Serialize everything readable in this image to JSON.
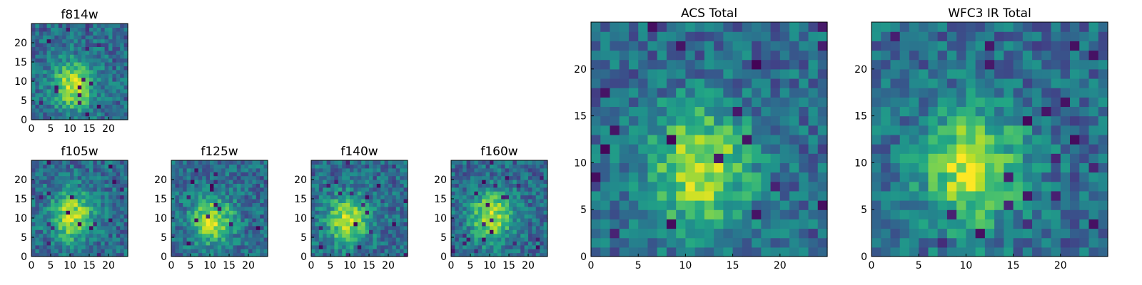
{
  "chart_data": [
    {
      "type": "heatmap",
      "title": "f814w",
      "colormap": "viridis",
      "xticks": [
        0,
        5,
        10,
        15,
        20
      ],
      "yticks": [
        0,
        5,
        10,
        15,
        20
      ],
      "xlim": [
        0,
        25
      ],
      "ylim": [
        0,
        25
      ],
      "grid_size": [
        25,
        25
      ],
      "values_seed": 11,
      "peak_center": [
        10.5,
        8.5
      ]
    },
    {
      "type": "heatmap",
      "title": "f105w",
      "colormap": "viridis",
      "xticks": [
        0,
        5,
        10,
        15,
        20
      ],
      "yticks": [
        0,
        5,
        10,
        15,
        20
      ],
      "xlim": [
        0,
        25
      ],
      "ylim": [
        0,
        25
      ],
      "grid_size": [
        25,
        25
      ],
      "values_seed": 21,
      "peak_center": [
        10,
        10
      ]
    },
    {
      "type": "heatmap",
      "title": "f125w",
      "colormap": "viridis",
      "xticks": [
        0,
        5,
        10,
        15,
        20
      ],
      "yticks": [
        0,
        5,
        10,
        15,
        20
      ],
      "xlim": [
        0,
        25
      ],
      "ylim": [
        0,
        25
      ],
      "grid_size": [
        25,
        25
      ],
      "values_seed": 31,
      "peak_center": [
        10,
        9
      ]
    },
    {
      "type": "heatmap",
      "title": "f140w",
      "colormap": "viridis",
      "xticks": [
        0,
        5,
        10,
        15,
        20
      ],
      "yticks": [
        0,
        5,
        10,
        15,
        20
      ],
      "xlim": [
        0,
        25
      ],
      "ylim": [
        0,
        25
      ],
      "grid_size": [
        25,
        25
      ],
      "values_seed": 41,
      "peak_center": [
        9,
        9
      ]
    },
    {
      "type": "heatmap",
      "title": "f160w",
      "colormap": "viridis",
      "xticks": [
        0,
        5,
        10,
        15,
        20
      ],
      "yticks": [
        0,
        5,
        10,
        15,
        20
      ],
      "xlim": [
        0,
        25
      ],
      "ylim": [
        0,
        25
      ],
      "grid_size": [
        25,
        25
      ],
      "values_seed": 51,
      "peak_center": [
        10,
        10
      ]
    },
    {
      "type": "heatmap",
      "title": "ACS Total",
      "colormap": "viridis",
      "xticks": [
        0,
        5,
        10,
        15,
        20
      ],
      "yticks": [
        0,
        5,
        10,
        15,
        20
      ],
      "xlim": [
        0,
        25
      ],
      "ylim": [
        0,
        25
      ],
      "grid_size": [
        25,
        25
      ],
      "values_seed": 61,
      "peak_center": [
        11,
        9
      ]
    },
    {
      "type": "heatmap",
      "title": "WFC3 IR Total",
      "colormap": "viridis",
      "xticks": [
        0,
        5,
        10,
        15,
        20
      ],
      "yticks": [
        0,
        5,
        10,
        15,
        20
      ],
      "xlim": [
        0,
        25
      ],
      "ylim": [
        0,
        25
      ],
      "grid_size": [
        25,
        25
      ],
      "values_seed": 71,
      "peak_center": [
        10,
        9
      ]
    }
  ]
}
